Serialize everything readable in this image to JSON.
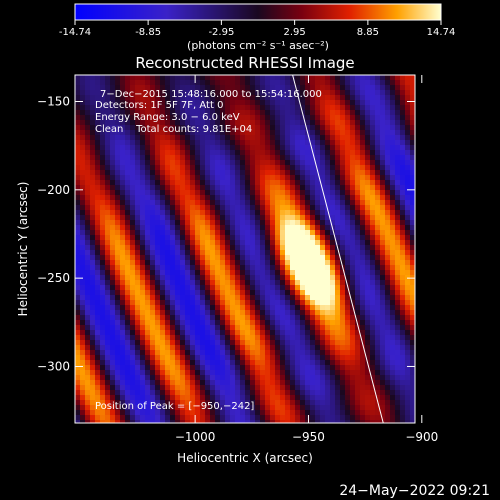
{
  "colorbar": {
    "ticks": [
      "-14.74",
      "-8.85",
      "-2.95",
      "2.95",
      "8.85",
      "14.74"
    ],
    "tick_values": [
      -14.74,
      -8.85,
      -2.95,
      2.95,
      8.85,
      14.74
    ],
    "range": [
      -14.74,
      14.74
    ],
    "unit": "(photons cm⁻² s⁻¹ asec⁻²)"
  },
  "chart_data": {
    "type": "heatmap",
    "title": "Reconstructed RHESSI Image",
    "xlabel": "Heliocentric X (arcsec)",
    "ylabel": "Heliocentric Y (arcsec)",
    "xlim": [
      -1053,
      -903
    ],
    "ylim": [
      -332,
      -135
    ],
    "x_ticks": [
      -1000,
      -950,
      -900
    ],
    "x_tick_labels": [
      "−1000",
      "−950",
      "−900"
    ],
    "y_ticks": [
      -150,
      -200,
      -250,
      -300
    ],
    "y_tick_labels": [
      "−150",
      "−200",
      "−250",
      "−300"
    ],
    "peak": [
      -950,
      -242
    ],
    "limb": [
      [
        -957,
        -135
      ],
      [
        -917,
        -332
      ]
    ],
    "annotations": [
      "7−Dec−2015 15:48:16.000 to 15:54:16.000",
      "Detectors: 1F 5F 7F, Att 0",
      "Energy Range: 3.0 − 6.0 keV",
      "Clean    Total counts: 9.81E+04"
    ],
    "peak_label": "Position of Peak = [−950,−242]"
  },
  "footer": {
    "date": "24−May−2022 09:21"
  }
}
